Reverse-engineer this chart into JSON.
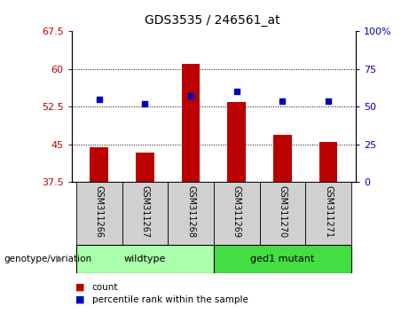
{
  "title": "GDS3535 / 246561_at",
  "samples": [
    "GSM311266",
    "GSM311267",
    "GSM311268",
    "GSM311269",
    "GSM311270",
    "GSM311271"
  ],
  "bar_values": [
    44.5,
    43.3,
    61.0,
    53.5,
    47.0,
    45.5
  ],
  "percentile_values_pct": [
    55,
    52,
    57,
    60,
    54,
    54
  ],
  "bar_color": "#bb0000",
  "dot_color": "#0000bb",
  "left_ylim": [
    37.5,
    67.5
  ],
  "left_yticks": [
    37.5,
    45.0,
    52.5,
    60.0,
    67.5
  ],
  "left_yticklabels": [
    "37.5",
    "45",
    "52.5",
    "60",
    "67.5"
  ],
  "right_ylim": [
    0,
    100
  ],
  "right_yticks": [
    0,
    25,
    50,
    75,
    100
  ],
  "right_yticklabels": [
    "0",
    "25",
    "50",
    "75",
    "100%"
  ],
  "grid_yticks": [
    45.0,
    52.5,
    60.0
  ],
  "bar_width": 0.4,
  "group_label": "genotype/variation",
  "group_ranges": [
    {
      "xstart": -0.5,
      "xend": 2.5,
      "label": "wildtype",
      "color": "#aaffaa"
    },
    {
      "xstart": 2.5,
      "xend": 5.5,
      "label": "ged1 mutant",
      "color": "#44dd44"
    }
  ],
  "legend_items": [
    {
      "label": "count",
      "color": "#bb0000"
    },
    {
      "label": "percentile rank within the sample",
      "color": "#0000bb"
    }
  ],
  "sample_cell_color": "#d0d0d0",
  "plot_bg": "#ffffff"
}
